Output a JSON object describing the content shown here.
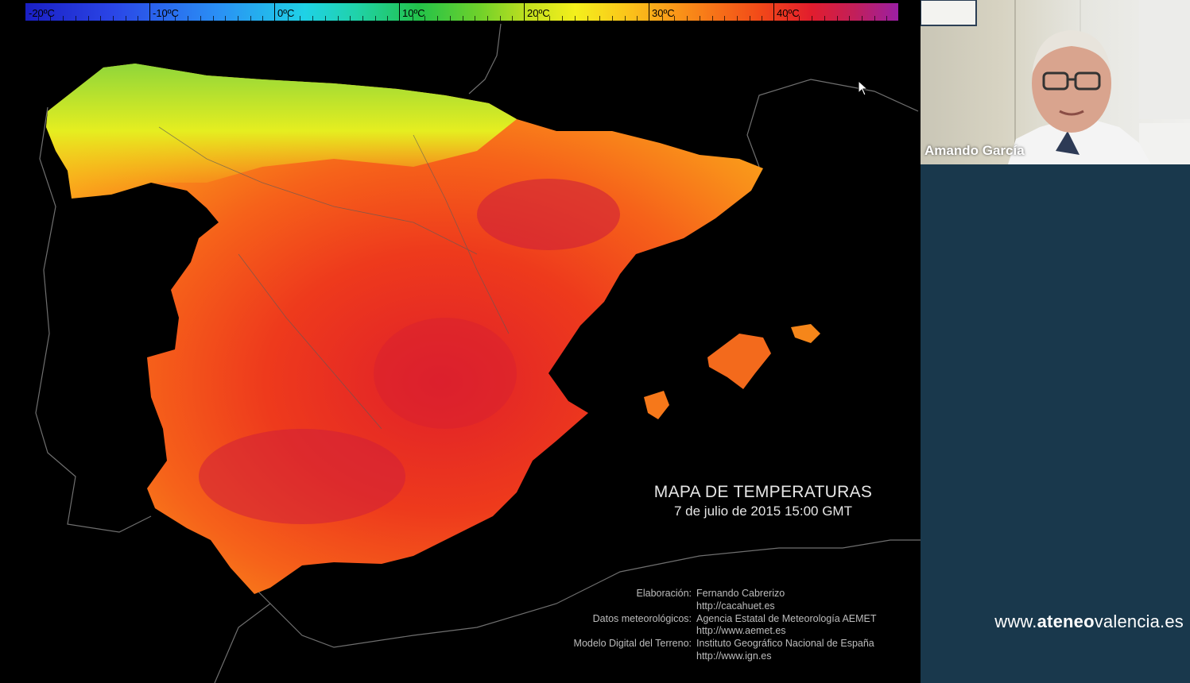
{
  "colorbar": {
    "labels": [
      "-20ºC",
      "-10ºC",
      "0ºC",
      "10ºC",
      "20ºC",
      "30ºC",
      "40ºC"
    ]
  },
  "map": {
    "title": "MAPA DE TEMPERATURAS",
    "subtitle": "7 de julio de 2015 15:00 GMT",
    "credits": [
      {
        "key": "Elaboración:",
        "value": "Fernando Cabrerizo"
      },
      {
        "key": "",
        "value": "http://cacahuet.es"
      },
      {
        "key": "Datos meteorológicos:",
        "value": "Agencia Estatal de Meteorología AEMET"
      },
      {
        "key": "",
        "value": "http://www.aemet.es"
      },
      {
        "key": "Modelo Digital del Terreno:",
        "value": "Instituto Geográfico Nacional de España"
      },
      {
        "key": "",
        "value": "http://www.ign.es"
      }
    ]
  },
  "participant": {
    "name": "Amando García"
  },
  "branding": {
    "site_prefix": "www.",
    "site_bold": "ateneo",
    "site_suffix": "valencia.es"
  },
  "colors": {
    "side_panel": "#19384c",
    "hot": "#e21d2d",
    "warm": "#f98a18",
    "mild": "#f4f01c",
    "cool": "#6fd12a"
  },
  "icons": [
    "mouse-cursor-icon"
  ]
}
